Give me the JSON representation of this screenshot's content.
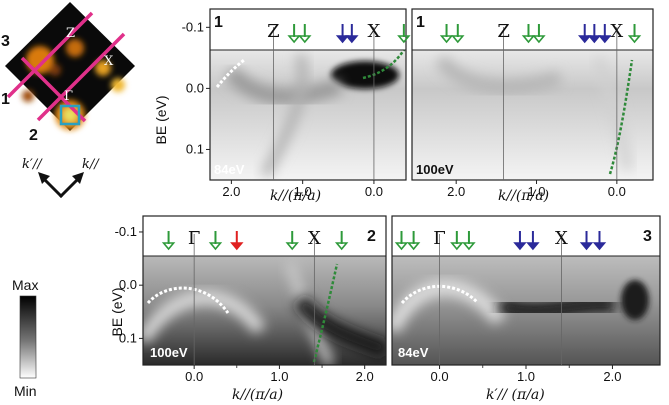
{
  "colors": {
    "green_arrow": "#2e9a3a",
    "blue_arrow": "#2b2a9a",
    "red_arrow": "#e02020",
    "dashed_white": "#ffffff",
    "dashed_green": "#2f8a3a",
    "bz_line": "#e0308a",
    "frame": "#222222"
  },
  "map_labels": {
    "z": "Z",
    "x": "X",
    "gamma": "Γ",
    "cut1": "1",
    "cut2": "2",
    "cut3": "3"
  },
  "k_axes": {
    "kpar_prime": "k′//",
    "kpar": "k//"
  },
  "colorbar": {
    "max_label": "Max",
    "min_label": "Min"
  },
  "axis_common": {
    "ylabel": "BE (eV)",
    "y_ticks": [
      "-0.1",
      "0.0",
      "0.1"
    ]
  },
  "chart_data": [
    {
      "type": "heatmap",
      "panel_number": "1",
      "energy_label": "84eV",
      "xlabel": "k//(π/a)",
      "xlim": [
        2.3,
        -0.45
      ],
      "x_reversed": true,
      "ylim": [
        -0.13,
        0.15
      ],
      "x_ticks": [
        "2.0",
        "1.0",
        "0.0"
      ],
      "x_tick_values": [
        2.0,
        1.0,
        0.0
      ],
      "y_ticks": [
        "-0.1",
        "0.0",
        "0.1"
      ],
      "y_tick_values": [
        -0.1,
        0.0,
        0.1
      ],
      "symmetry_points": [
        {
          "label": "Z",
          "k": 1.41
        },
        {
          "label": "X",
          "k": 0.0
        }
      ],
      "arrows": {
        "green": [
          1.12,
          0.97,
          -0.42
        ],
        "blue": [
          0.44,
          0.31
        ],
        "red": []
      },
      "fermi_level": 0.0
    },
    {
      "type": "heatmap",
      "panel_number": "1",
      "energy_label": "100eV",
      "xlabel": "k//(π/a)",
      "xlim": [
        2.55,
        -0.45
      ],
      "x_reversed": true,
      "ylim": [
        -0.13,
        0.15
      ],
      "x_ticks": [
        "2.0",
        "1.0",
        "0.0"
      ],
      "x_tick_values": [
        2.0,
        1.0,
        0.0
      ],
      "symmetry_points": [
        {
          "label": "Z",
          "k": 1.41
        },
        {
          "label": "X",
          "k": 0.0
        }
      ],
      "arrows": {
        "green": [
          2.12,
          1.98,
          1.1,
          0.97,
          -0.22
        ],
        "blue": [
          0.4,
          0.28,
          0.15
        ],
        "red": []
      },
      "fermi_level": 0.0
    },
    {
      "type": "heatmap",
      "panel_number": "2",
      "energy_label": "100eV",
      "xlabel": "k//(π/a)",
      "xlim": [
        -0.6,
        2.25
      ],
      "x_reversed": false,
      "ylim": [
        -0.13,
        0.15
      ],
      "x_ticks": [
        "0.0",
        "1.0",
        "2.0"
      ],
      "x_tick_values": [
        0.0,
        1.0,
        2.0
      ],
      "x_minor_ticks": [
        0.5,
        1.5
      ],
      "symmetry_points": [
        {
          "label": "Γ",
          "k": 0.0
        },
        {
          "label": "X",
          "k": 1.41
        }
      ],
      "arrows": {
        "green": [
          -0.3,
          0.25,
          1.15,
          1.73
        ],
        "blue": [],
        "red": [
          0.5
        ]
      },
      "fermi_level": 0.0
    },
    {
      "type": "heatmap",
      "panel_number": "3",
      "energy_label": "84eV",
      "xlabel": "k′// (π/a)",
      "xlim": [
        -0.55,
        2.55
      ],
      "x_reversed": false,
      "ylim": [
        -0.13,
        0.15
      ],
      "x_ticks": [
        "0.0",
        "1.0",
        "2.0"
      ],
      "x_tick_values": [
        0.0,
        1.0,
        2.0
      ],
      "x_minor_ticks": [
        0.5,
        1.5
      ],
      "symmetry_points": [
        {
          "label": "Γ",
          "k": 0.0
        },
        {
          "label": "X",
          "k": 1.41
        }
      ],
      "arrows": {
        "green": [
          -0.44,
          -0.3,
          0.2,
          0.34
        ],
        "blue": [
          0.93,
          1.08,
          1.7,
          1.85
        ],
        "red": []
      },
      "fermi_level": 0.0
    }
  ]
}
